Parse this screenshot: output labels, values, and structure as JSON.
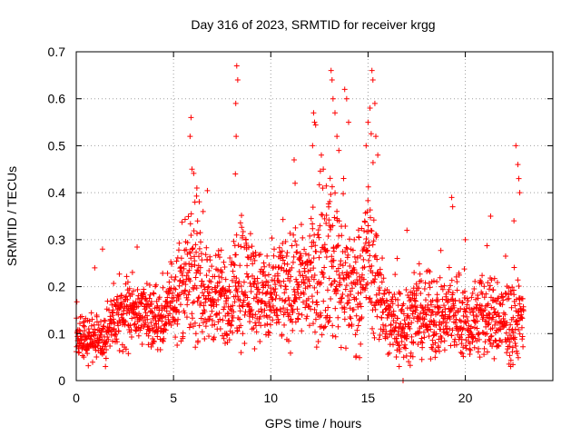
{
  "chart_data": {
    "type": "scatter",
    "title": "Day 316 of 2023, SRMTID for receiver krgg",
    "xlabel": "GPS time / hours",
    "ylabel": "SRMTID / TECUs",
    "xlim": [
      0,
      24.5
    ],
    "ylim": [
      0,
      0.7
    ],
    "xticks": [
      0,
      5,
      10,
      15,
      20
    ],
    "yticks": [
      0,
      0.1,
      0.2,
      0.3,
      0.4,
      0.5,
      0.6,
      0.7
    ],
    "xtick_labels": [
      "0",
      "5",
      "10",
      "15",
      "20"
    ],
    "ytick_labels": [
      "0",
      "0.1",
      "0.2",
      "0.3",
      "0.4",
      "0.5",
      "0.6",
      "0.7"
    ],
    "grid": true,
    "marker": "plus",
    "color": "#ff0000",
    "series": [
      {
        "name": "SRMTID",
        "profile_x": [
          0,
          0.5,
          1,
          1.5,
          2,
          3,
          4,
          4.5,
          5,
          5.5,
          6,
          6.5,
          7,
          8,
          8.3,
          9,
          10,
          10.5,
          11,
          11.5,
          12,
          12.5,
          13,
          13.5,
          14,
          14.5,
          15,
          15.5,
          16,
          16.5,
          17,
          18,
          19,
          19.5,
          20,
          21,
          22,
          22.5,
          23
        ],
        "profile_median": [
          0.1,
          0.09,
          0.085,
          0.09,
          0.13,
          0.15,
          0.14,
          0.13,
          0.19,
          0.2,
          0.22,
          0.19,
          0.18,
          0.17,
          0.23,
          0.2,
          0.16,
          0.2,
          0.19,
          0.22,
          0.21,
          0.24,
          0.26,
          0.25,
          0.2,
          0.19,
          0.28,
          0.2,
          0.13,
          0.12,
          0.13,
          0.14,
          0.13,
          0.15,
          0.12,
          0.14,
          0.12,
          0.11,
          0.15
        ],
        "profile_spread": [
          0.03,
          0.03,
          0.03,
          0.03,
          0.04,
          0.04,
          0.04,
          0.04,
          0.06,
          0.07,
          0.08,
          0.06,
          0.06,
          0.06,
          0.09,
          0.07,
          0.06,
          0.07,
          0.07,
          0.08,
          0.08,
          0.09,
          0.1,
          0.1,
          0.08,
          0.07,
          0.1,
          0.07,
          0.05,
          0.05,
          0.05,
          0.05,
          0.05,
          0.06,
          0.05,
          0.06,
          0.05,
          0.05,
          0.05
        ],
        "peaks": [
          {
            "x": 1.35,
            "y": 0.28
          },
          {
            "x": 0.95,
            "y": 0.24
          },
          {
            "x": 5.9,
            "y": 0.56
          },
          {
            "x": 5.85,
            "y": 0.52
          },
          {
            "x": 5.95,
            "y": 0.45
          },
          {
            "x": 6.2,
            "y": 0.41
          },
          {
            "x": 6.1,
            "y": 0.38
          },
          {
            "x": 8.25,
            "y": 0.67
          },
          {
            "x": 8.3,
            "y": 0.64
          },
          {
            "x": 8.2,
            "y": 0.59
          },
          {
            "x": 8.22,
            "y": 0.52
          },
          {
            "x": 8.18,
            "y": 0.44
          },
          {
            "x": 11.2,
            "y": 0.47
          },
          {
            "x": 11.25,
            "y": 0.42
          },
          {
            "x": 12.2,
            "y": 0.57
          },
          {
            "x": 12.25,
            "y": 0.55
          },
          {
            "x": 12.15,
            "y": 0.5
          },
          {
            "x": 12.6,
            "y": 0.48
          },
          {
            "x": 12.7,
            "y": 0.45
          },
          {
            "x": 13.1,
            "y": 0.66
          },
          {
            "x": 13.15,
            "y": 0.64
          },
          {
            "x": 13.2,
            "y": 0.6
          },
          {
            "x": 13.3,
            "y": 0.57
          },
          {
            "x": 13.4,
            "y": 0.52
          },
          {
            "x": 13.5,
            "y": 0.49
          },
          {
            "x": 13.8,
            "y": 0.62
          },
          {
            "x": 13.9,
            "y": 0.6
          },
          {
            "x": 14.0,
            "y": 0.55
          },
          {
            "x": 15.2,
            "y": 0.66
          },
          {
            "x": 15.25,
            "y": 0.64
          },
          {
            "x": 15.1,
            "y": 0.58
          },
          {
            "x": 15.35,
            "y": 0.59
          },
          {
            "x": 15.0,
            "y": 0.55
          },
          {
            "x": 14.9,
            "y": 0.5
          },
          {
            "x": 15.4,
            "y": 0.52
          },
          {
            "x": 15.5,
            "y": 0.48
          },
          {
            "x": 17.0,
            "y": 0.32
          },
          {
            "x": 16.5,
            "y": 0.26
          },
          {
            "x": 19.3,
            "y": 0.39
          },
          {
            "x": 19.35,
            "y": 0.37
          },
          {
            "x": 20.0,
            "y": 0.3
          },
          {
            "x": 21.3,
            "y": 0.35
          },
          {
            "x": 22.6,
            "y": 0.5
          },
          {
            "x": 22.7,
            "y": 0.46
          },
          {
            "x": 22.75,
            "y": 0.43
          },
          {
            "x": 22.8,
            "y": 0.4
          },
          {
            "x": 22.5,
            "y": 0.34
          },
          {
            "x": 16.8,
            "y": 0.0
          },
          {
            "x": 16.6,
            "y": 0.03
          }
        ]
      }
    ]
  }
}
